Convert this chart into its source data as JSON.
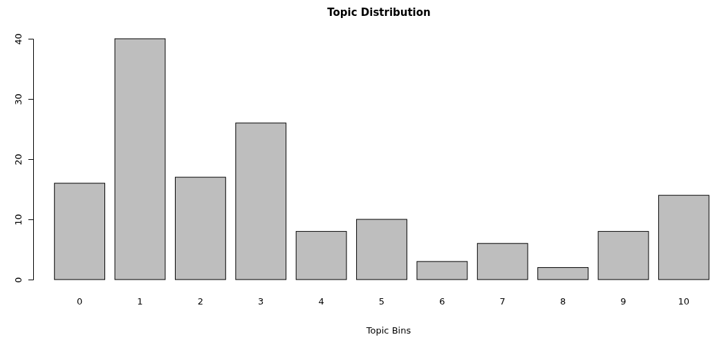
{
  "chart_data": {
    "type": "bar",
    "title": "Topic Distribution",
    "xlabel": "Topic Bins",
    "categories": [
      "0",
      "1",
      "2",
      "3",
      "4",
      "5",
      "6",
      "7",
      "8",
      "9",
      "10"
    ],
    "values": [
      16,
      40,
      17,
      26,
      8,
      10,
      3,
      6,
      2,
      8,
      14
    ],
    "color": "#bebebe",
    "ylim": [
      0,
      40
    ],
    "yticks": [
      0,
      10,
      20,
      30,
      40
    ],
    "grid": false
  }
}
